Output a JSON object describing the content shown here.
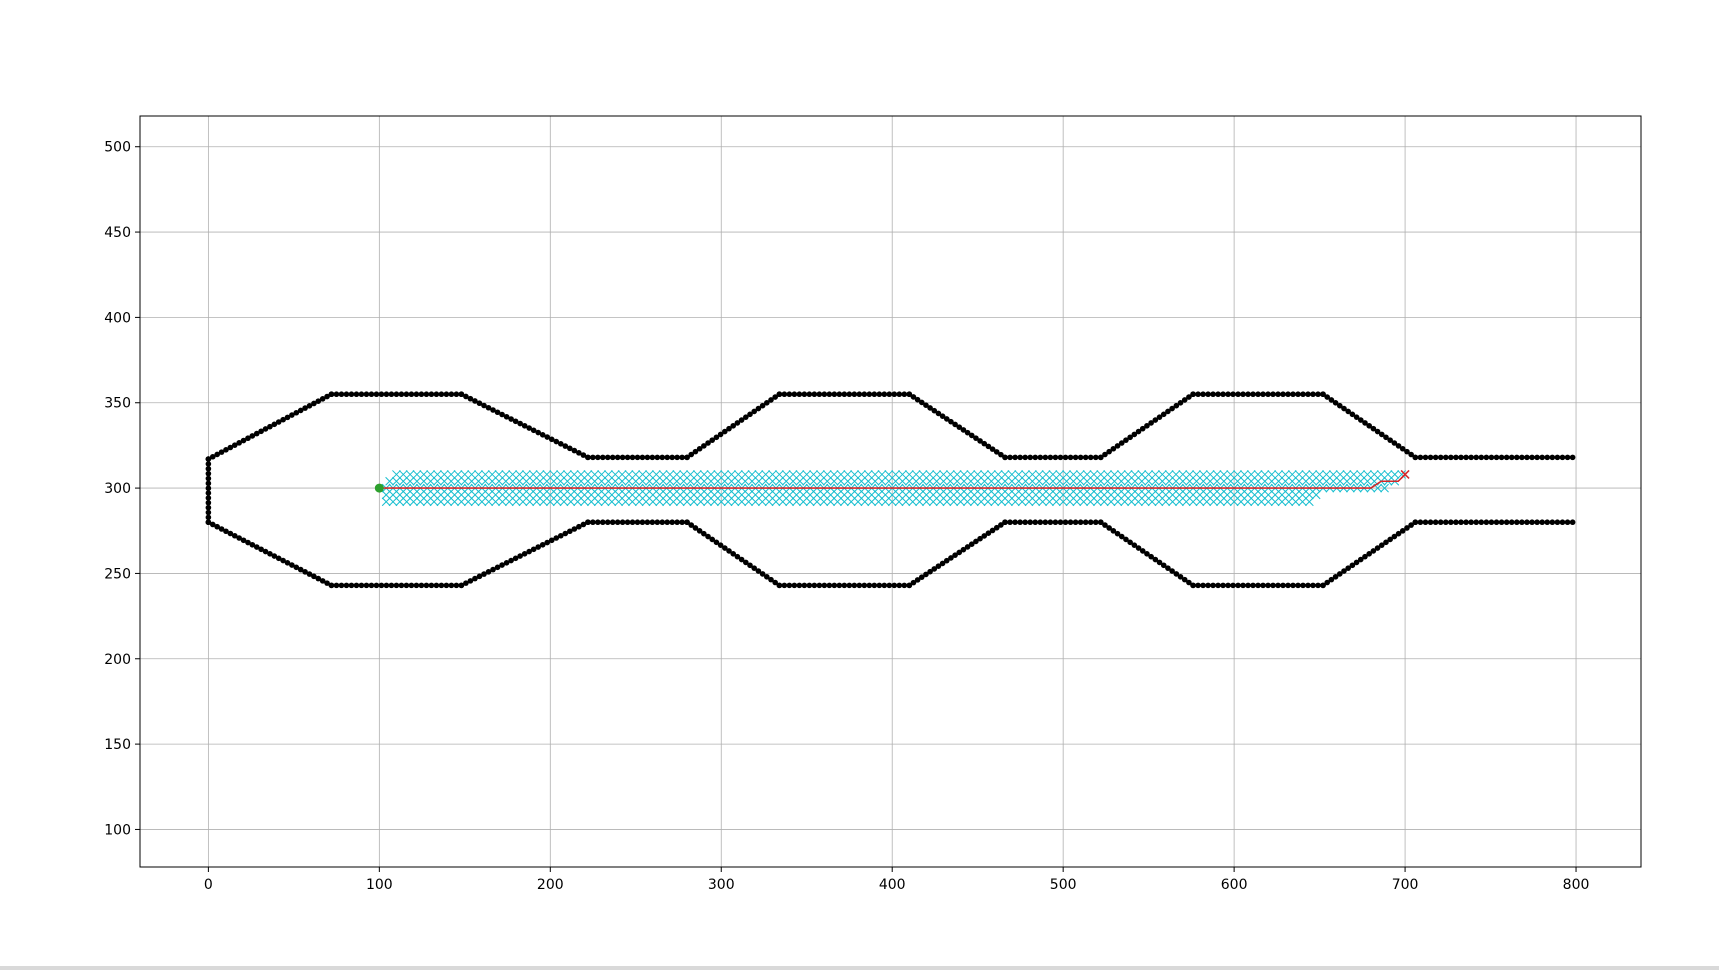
{
  "chart_data": {
    "type": "scatter",
    "title": "",
    "xlabel": "",
    "ylabel": "",
    "xlim": [
      -40,
      838
    ],
    "ylim": [
      78,
      518
    ],
    "xticks": [
      "0",
      "100",
      "200",
      "300",
      "400",
      "500",
      "600",
      "700",
      "800"
    ],
    "yticks": [
      "100",
      "150",
      "200",
      "250",
      "300",
      "350",
      "400",
      "450",
      "500"
    ],
    "grid": true,
    "legend": "none",
    "colors": {
      "walls": "#000000",
      "explored": "#17becf",
      "path": "#d62728",
      "start": "#2ca02c",
      "grid": "#b0b0b0"
    },
    "start_point": [
      100,
      300
    ],
    "goal_point": [
      700,
      308
    ],
    "upper_wall": [
      [
        0,
        317
      ],
      [
        72,
        355
      ],
      [
        148,
        355
      ],
      [
        222,
        318
      ],
      [
        280,
        318
      ],
      [
        334,
        355
      ],
      [
        410,
        355
      ],
      [
        466,
        318
      ],
      [
        522,
        318
      ],
      [
        576,
        355
      ],
      [
        652,
        355
      ],
      [
        706,
        318
      ],
      [
        798,
        318
      ]
    ],
    "lower_wall": [
      [
        0,
        280
      ],
      [
        72,
        243
      ],
      [
        148,
        243
      ],
      [
        222,
        280
      ],
      [
        280,
        280
      ],
      [
        334,
        243
      ],
      [
        410,
        243
      ],
      [
        466,
        280
      ],
      [
        522,
        280
      ],
      [
        576,
        243
      ],
      [
        652,
        243
      ],
      [
        706,
        280
      ],
      [
        798,
        280
      ]
    ],
    "left_wall": [
      [
        0,
        280
      ],
      [
        0,
        317
      ]
    ],
    "explored_rows": [
      {
        "y": 308,
        "x_start": 110,
        "x_end": 698
      },
      {
        "y": 304,
        "x_start": 106,
        "x_end": 694
      },
      {
        "y": 300,
        "x_start": 104,
        "x_end": 690
      },
      {
        "y": 296,
        "x_start": 104,
        "x_end": 650
      },
      {
        "y": 292,
        "x_start": 104,
        "x_end": 646
      }
    ],
    "path": [
      [
        100,
        300
      ],
      [
        680,
        300
      ],
      [
        686,
        304
      ],
      [
        696,
        304
      ],
      [
        700,
        308
      ]
    ]
  }
}
